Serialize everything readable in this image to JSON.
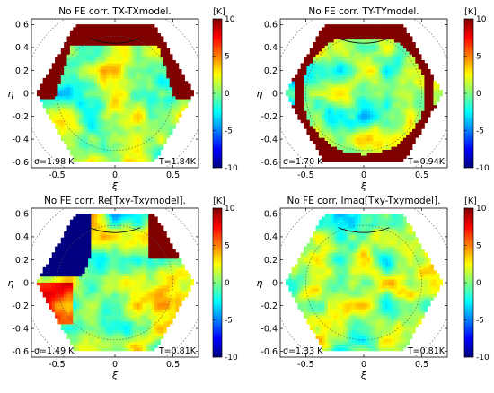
{
  "chart_data": [
    {
      "type": "heatmap",
      "title": "No FE corr. TX-TXmodel.",
      "xlabel": "ξ",
      "ylabel": "η",
      "xlim": [
        -0.72,
        0.72
      ],
      "ylim": [
        -0.65,
        0.65
      ],
      "xticks": [
        "-0.5",
        "0",
        "0.5"
      ],
      "xtick_values": [
        -0.5,
        0,
        0.5
      ],
      "yticks": [
        "0.6",
        "0.4",
        "0.2",
        "0",
        "-0.2",
        "-0.4",
        "-0.6"
      ],
      "ytick_values": [
        0.6,
        0.4,
        0.2,
        0,
        -0.2,
        -0.4,
        -0.6
      ],
      "colorbar": {
        "unit": "[K]",
        "ticks": [
          "10",
          "5",
          "0",
          "-5",
          "-10"
        ],
        "tick_values": [
          10,
          5,
          0,
          -5,
          -10
        ],
        "range": [
          -10,
          10
        ],
        "colormap": "jet"
      },
      "sigma_label": "σ=1.98 K",
      "t_label": "T=1.84K",
      "saturated_region": "top-and-upper-sides"
    },
    {
      "type": "heatmap",
      "title": "No FE corr. TY-TYmodel.",
      "xlabel": "ξ",
      "ylabel": "η",
      "xlim": [
        -0.72,
        0.72
      ],
      "ylim": [
        -0.65,
        0.65
      ],
      "xticks": [
        "-0.5",
        "0",
        "0.5"
      ],
      "xtick_values": [
        -0.5,
        0,
        0.5
      ],
      "yticks": [
        "0.6",
        "0.4",
        "0.2",
        "0",
        "-0.2",
        "-0.4",
        "-0.6"
      ],
      "ytick_values": [
        0.6,
        0.4,
        0.2,
        0,
        -0.2,
        -0.4,
        -0.6
      ],
      "colorbar": {
        "unit": "[K]",
        "ticks": [
          "10",
          "5",
          "0",
          "-5",
          "-10"
        ],
        "tick_values": [
          10,
          5,
          0,
          -5,
          -10
        ],
        "range": [
          -10,
          10
        ],
        "colormap": "jet"
      },
      "sigma_label": "σ=1.70 K",
      "t_label": "T=0.94K",
      "saturated_region": "outer-ring"
    },
    {
      "type": "heatmap",
      "title": "No FE corr. Re[Txy-Txymodel].",
      "xlabel": "ξ",
      "ylabel": "η",
      "xlim": [
        -0.72,
        0.72
      ],
      "ylim": [
        -0.65,
        0.65
      ],
      "xticks": [
        "-0.5",
        "0",
        "0.5"
      ],
      "xtick_values": [
        -0.5,
        0,
        0.5
      ],
      "yticks": [
        "0.6",
        "0.4",
        "0.2",
        "0",
        "-0.2",
        "-0.4",
        "-0.6"
      ],
      "ytick_values": [
        0.6,
        0.4,
        0.2,
        0,
        -0.2,
        -0.4,
        -0.6
      ],
      "colorbar": {
        "unit": "[K]",
        "ticks": [
          "10",
          "5",
          "0",
          "-5",
          "-10"
        ],
        "tick_values": [
          10,
          5,
          0,
          -5,
          -10
        ],
        "range": [
          -10,
          10
        ],
        "colormap": "jet"
      },
      "sigma_label": "σ=1.49 K",
      "t_label": "T=0.81K",
      "saturated_region": "upper-left-negative-upper-right-positive"
    },
    {
      "type": "heatmap",
      "title": "No FE corr. Imag[Txy-Txymodel].",
      "xlabel": "ξ",
      "ylabel": "η",
      "xlim": [
        -0.72,
        0.72
      ],
      "ylim": [
        -0.65,
        0.65
      ],
      "xticks": [
        "-0.5",
        "0",
        "0.5"
      ],
      "xtick_values": [
        -0.5,
        0,
        0.5
      ],
      "yticks": [
        "0.6",
        "0.4",
        "0.2",
        "0",
        "-0.2",
        "-0.4",
        "-0.6"
      ],
      "ytick_values": [
        0.6,
        0.4,
        0.2,
        0,
        -0.2,
        -0.4,
        -0.6
      ],
      "colorbar": {
        "unit": "[K]",
        "ticks": [
          "10",
          "5",
          "0",
          "-5",
          "-10"
        ],
        "tick_values": [
          10,
          5,
          0,
          -5,
          -10
        ],
        "range": [
          -10,
          10
        ],
        "colormap": "jet"
      },
      "sigma_label": "σ=1.33 K",
      "t_label": "T=0.81K",
      "saturated_region": "none"
    }
  ]
}
